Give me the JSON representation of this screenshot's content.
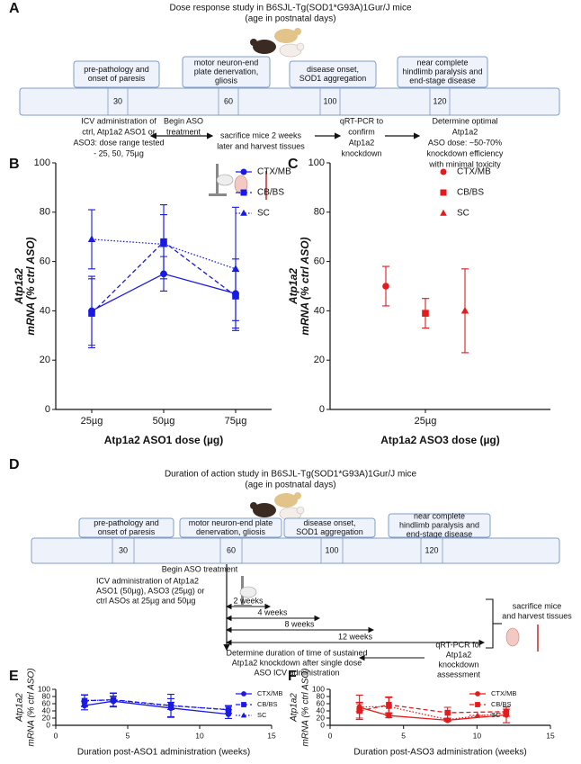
{
  "diagrams": [
    {
      "label": "A",
      "title": "Dose response study in B6SJL-Tg(SOD1*G93A)1Gur/J mice",
      "subtitle": "(age in postnatal days)",
      "stages": [
        [
          "pre-pathology and",
          "onset of paresis"
        ],
        [
          "motor neuron-end",
          "plate denervation,",
          "gliosis"
        ],
        [
          "disease onset,",
          "SOD1 aggregation"
        ],
        [
          "near complete",
          "hindlimb paralysis and",
          "end-stage disease"
        ]
      ],
      "days": [
        "30",
        "60",
        "100",
        "120"
      ],
      "notes": [
        [
          "ICV administration of",
          "ctrl, Atp1a2 ASO1 or",
          "ASO3: dose range tested",
          "- 25, 50, 75µg"
        ],
        [
          "Begin ASO",
          "treatment"
        ],
        [
          "sacrifice mice 2 weeks",
          "later and harvest tissues"
        ],
        [
          "qRT-PCR to",
          "confirm",
          "Atp1a2",
          "knockdown"
        ],
        [
          "Determine optimal",
          "Atp1a2",
          "ASO dose: ~50-70%",
          "knockdown efficiency",
          "with minimal toxicity"
        ]
      ]
    },
    {
      "label": "D",
      "title": "Duration of action study in B6SJL-Tg(SOD1*G93A)1Gur/J mice",
      "subtitle": "(age in postnatal days)",
      "stages": [
        [
          "pre-pathology and",
          "onset of paresis"
        ],
        [
          "motor neuron-end plate",
          "denervation, gliosis"
        ],
        [
          "disease onset,",
          "SOD1 aggregation"
        ],
        [
          "near complete",
          "hindlimb paralysis and",
          "end-stage disease"
        ]
      ],
      "days": [
        "30",
        "60",
        "100",
        "120"
      ],
      "notes": [
        [
          "Begin ASO treatment"
        ],
        [
          "ICV administration of Atp1a2",
          "ASO1  (50µg), ASO3 (25µg)  or",
          "ctrl ASOs at 25µg and 50µg"
        ],
        [
          "sacrifice mice",
          "and harvest tissues"
        ],
        [
          "Determine duration of time of sustained",
          "Atp1a2 knockdown after single dose",
          "ASO ICV administration"
        ],
        [
          "qRT-PCR for",
          "Atp1a2",
          "knockdown",
          "assessment"
        ]
      ],
      "durations": [
        "2 weeks",
        "4 weeks",
        "8 weeks",
        "12 weeks"
      ]
    }
  ],
  "chart_data": [
    {
      "type": "line",
      "label": "B",
      "categories": [
        "25µg",
        "50µg",
        "75µg"
      ],
      "xlabel": "Atp1a2 ASO1 dose (µg)",
      "ylabel": [
        "Atp1a2",
        "mRNA (% ctrl ASO)"
      ],
      "ylim": [
        0,
        100
      ],
      "yticks": [
        0,
        20,
        40,
        60,
        80,
        100
      ],
      "legend": "upper right",
      "series": [
        {
          "name": "CTX/MB",
          "color": "#1a1ae6",
          "marker": "circle",
          "dash": "solid",
          "values": [
            40,
            55,
            47
          ],
          "errors": [
            14,
            7,
            14
          ]
        },
        {
          "name": "CB/BS",
          "color": "#1a1ae6",
          "marker": "square",
          "dash": "dashed",
          "values": [
            39,
            68,
            46
          ],
          "errors": [
            14,
            15,
            10
          ]
        },
        {
          "name": "SC",
          "color": "#1a1ae6",
          "marker": "triangle",
          "dash": "dotted",
          "values": [
            69,
            67,
            57
          ],
          "errors": [
            12,
            12,
            25
          ]
        }
      ]
    },
    {
      "type": "dot",
      "label": "C",
      "dodge": true,
      "categories": [
        "25µg"
      ],
      "xlabel": "Atp1a2 ASO3 dose (µg)",
      "ylabel": [
        "Atp1a2",
        "mRNA (% ctrl ASO)"
      ],
      "ylim": [
        0,
        100
      ],
      "yticks": [
        0,
        20,
        40,
        60,
        80,
        100
      ],
      "legend": "upper right",
      "series": [
        {
          "name": "CTX/MB",
          "color": "#e41a1c",
          "marker": "circle",
          "values": [
            50
          ],
          "errors": [
            8
          ]
        },
        {
          "name": "CB/BS",
          "color": "#e41a1c",
          "marker": "square",
          "values": [
            39
          ],
          "errors": [
            6
          ]
        },
        {
          "name": "SC",
          "color": "#e41a1c",
          "marker": "triangle",
          "values": [
            40
          ],
          "errors": [
            17
          ]
        }
      ]
    },
    {
      "type": "line",
      "label": "E",
      "x": [
        2,
        4,
        8,
        12
      ],
      "xlabel": "Duration post-ASO1 administration (weeks)",
      "ylabel": [
        "Atp1a2",
        "mRNA (% ctrl ASO)"
      ],
      "xlim": [
        0,
        15
      ],
      "xticks": [
        0,
        5,
        10,
        15
      ],
      "ylim": [
        0,
        100
      ],
      "yticks": [
        0,
        20,
        40,
        60,
        80,
        100
      ],
      "legend": "upper right",
      "series": [
        {
          "name": "CTX/MB",
          "color": "#1a1ae6",
          "marker": "circle",
          "dash": "solid",
          "values": [
            55,
            67,
            48,
            31
          ],
          "errors": [
            12,
            14,
            26,
            12
          ]
        },
        {
          "name": "CB/BS",
          "color": "#1a1ae6",
          "marker": "square",
          "dash": "dashed",
          "values": [
            68,
            71,
            55,
            43
          ],
          "errors": [
            16,
            19,
            31,
            10
          ]
        },
        {
          "name": "SC",
          "color": "#1a1ae6",
          "marker": "triangle",
          "dash": "dotted",
          "values": [
            69,
            70,
            54,
            44
          ],
          "errors": [
            16,
            19,
            10,
            11
          ]
        }
      ]
    },
    {
      "type": "line",
      "label": "F",
      "x": [
        2,
        4,
        8,
        12
      ],
      "xlabel": "Duration post-ASO3 administration (weeks)",
      "ylabel": [
        "Atp1a2",
        "mRNA (% ctrl ASO)"
      ],
      "xlim": [
        0,
        15
      ],
      "xticks": [
        0,
        5,
        10,
        15
      ],
      "ylim": [
        0,
        100
      ],
      "yticks": [
        0,
        20,
        40,
        60,
        80,
        100
      ],
      "legend": "upper right",
      "series": [
        {
          "name": "CTX/MB",
          "color": "#e41a1c",
          "marker": "circle",
          "dash": "solid",
          "values": [
            50,
            27,
            14,
            29
          ],
          "errors": [
            34,
            6,
            3,
            22
          ]
        },
        {
          "name": "CB/BS",
          "color": "#e41a1c",
          "marker": "square",
          "dash": "dashed",
          "values": [
            40,
            57,
            35,
            38
          ],
          "errors": [
            20,
            22,
            15,
            13
          ]
        },
        {
          "name": "SC",
          "color": "#e41a1c",
          "marker": "triangle",
          "dash": "dotted",
          "values": [
            51,
            52,
            16,
            35
          ],
          "errors": [
            13,
            25,
            4,
            10
          ]
        }
      ]
    }
  ]
}
